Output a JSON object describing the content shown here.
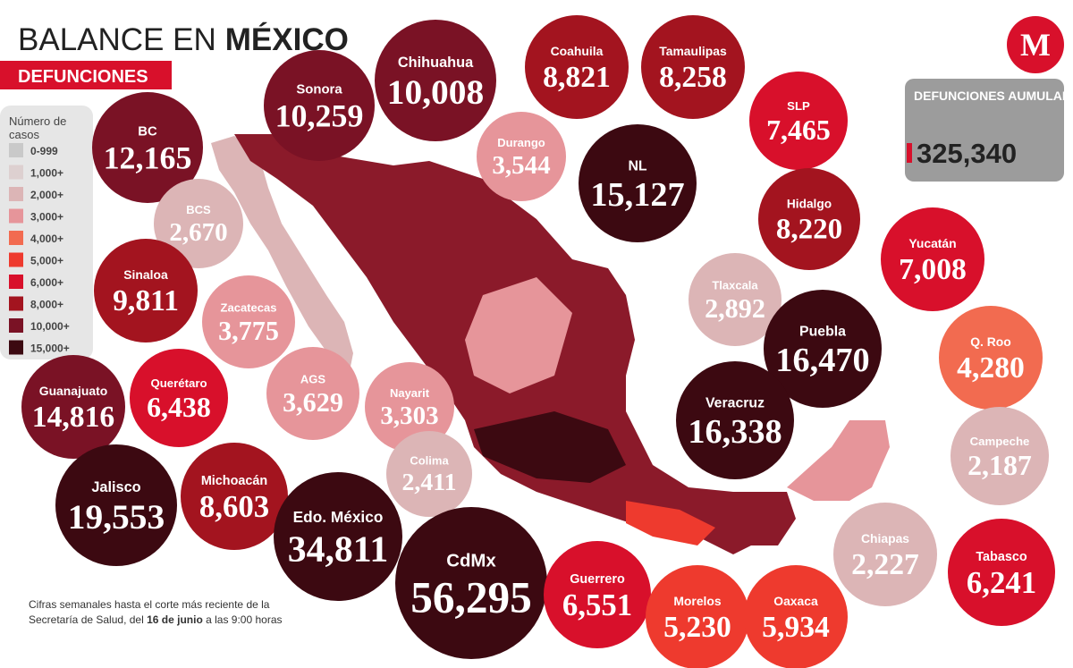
{
  "header": {
    "title_regular": "BALANCE EN",
    "title_bold": "MÉXICO",
    "subtitle": "DEFUNCIONES",
    "logo": "M"
  },
  "legend": {
    "title": "Número de casos",
    "items": [
      {
        "label": "0-999",
        "color": "#c9c9c9"
      },
      {
        "label": "1,000+",
        "color": "#ddd0d0"
      },
      {
        "label": "2,000+",
        "color": "#dcb5b6"
      },
      {
        "label": "3,000+",
        "color": "#e6959a"
      },
      {
        "label": "4,000+",
        "color": "#f26b50"
      },
      {
        "label": "5,000+",
        "color": "#ee3a2e"
      },
      {
        "label": "6,000+",
        "color": "#d8102b"
      },
      {
        "label": "8,000+",
        "color": "#a3141f"
      },
      {
        "label": "10,000+",
        "color": "#7a1225"
      },
      {
        "label": "15,000+",
        "color": "#3c0911"
      }
    ]
  },
  "total": {
    "label": "DEFUNCIONES AUMULADAS:",
    "value": "325,340"
  },
  "states": [
    {
      "name": "BC",
      "value": "12,165",
      "color": "#7a1225"
    },
    {
      "name": "Sonora",
      "value": "10,259",
      "color": "#7a1225"
    },
    {
      "name": "Chihuahua",
      "value": "10,008",
      "color": "#7a1225"
    },
    {
      "name": "Coahuila",
      "value": "8,821",
      "color": "#a3141f"
    },
    {
      "name": "Tamaulipas",
      "value": "8,258",
      "color": "#a3141f"
    },
    {
      "name": "SLP",
      "value": "7,465",
      "color": "#d8102b"
    },
    {
      "name": "Durango",
      "value": "3,544",
      "color": "#e6959a"
    },
    {
      "name": "NL",
      "value": "15,127",
      "color": "#3c0911"
    },
    {
      "name": "BCS",
      "value": "2,670",
      "color": "#dcb5b6"
    },
    {
      "name": "Hidalgo",
      "value": "8,220",
      "color": "#a3141f"
    },
    {
      "name": "Yucatán",
      "value": "7,008",
      "color": "#d8102b"
    },
    {
      "name": "Sinaloa",
      "value": "9,811",
      "color": "#a3141f"
    },
    {
      "name": "Zacatecas",
      "value": "3,775",
      "color": "#e6959a"
    },
    {
      "name": "Tlaxcala",
      "value": "2,892",
      "color": "#dcb5b6"
    },
    {
      "name": "Puebla",
      "value": "16,470",
      "color": "#3c0911"
    },
    {
      "name": "Q. Roo",
      "value": "4,280",
      "color": "#f26b50"
    },
    {
      "name": "Guanajuato",
      "value": "14,816",
      "color": "#7a1225"
    },
    {
      "name": "Querétaro",
      "value": "6,438",
      "color": "#d8102b"
    },
    {
      "name": "AGS",
      "value": "3,629",
      "color": "#e6959a"
    },
    {
      "name": "Nayarit",
      "value": "3,303",
      "color": "#e6959a"
    },
    {
      "name": "Veracruz",
      "value": "16,338",
      "color": "#3c0911"
    },
    {
      "name": "Colima",
      "value": "2,411",
      "color": "#dcb5b6"
    },
    {
      "name": "Campeche",
      "value": "2,187",
      "color": "#dcb5b6"
    },
    {
      "name": "Jalisco",
      "value": "19,553",
      "color": "#3c0911"
    },
    {
      "name": "Michoacán",
      "value": "8,603",
      "color": "#a3141f"
    },
    {
      "name": "Edo. México",
      "value": "34,811",
      "color": "#3c0911"
    },
    {
      "name": "CdMx",
      "value": "56,295",
      "color": "#3c0911"
    },
    {
      "name": "Guerrero",
      "value": "6,551",
      "color": "#d8102b"
    },
    {
      "name": "Morelos",
      "value": "5,230",
      "color": "#ee3a2e"
    },
    {
      "name": "Oaxaca",
      "value": "5,934",
      "color": "#ee3a2e"
    },
    {
      "name": "Chiapas",
      "value": "2,227",
      "color": "#dcb5b6"
    },
    {
      "name": "Tabasco",
      "value": "6,241",
      "color": "#d8102b"
    }
  ],
  "footnote": {
    "part1": "Cifras semanales hasta el corte más reciente de la Secretaría de Salud, del ",
    "bold": "16 de junio",
    "part2": " a las 9:00 horas"
  }
}
